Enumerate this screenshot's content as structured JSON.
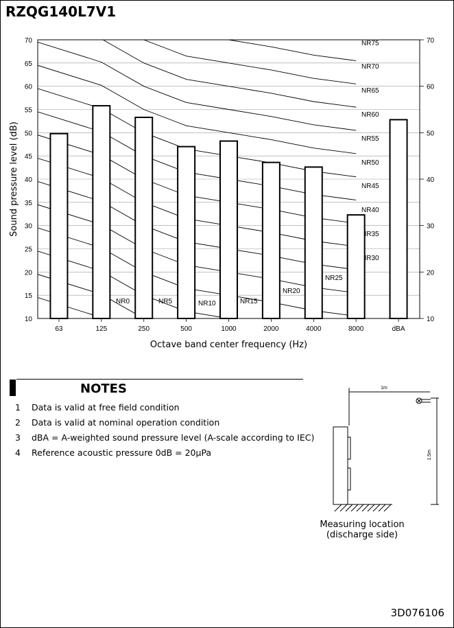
{
  "page_title": "RZQG140L7V1",
  "chart_data": {
    "type": "bar",
    "categories": [
      "63",
      "125",
      "250",
      "500",
      "1000",
      "2000",
      "4000",
      "8000",
      "dBA"
    ],
    "values": [
      49.8,
      55.8,
      53.3,
      47.0,
      48.2,
      43.6,
      42.6,
      32.3,
      52.8
    ],
    "xlabel": "Octave band center frequency (Hz)",
    "ylabel": "Sound pressure level (dB)",
    "ylim": [
      10,
      70
    ],
    "yticks_left": [
      10,
      15,
      20,
      25,
      30,
      35,
      40,
      45,
      50,
      55,
      60,
      65,
      70
    ],
    "yticks_right": [
      10,
      20,
      30,
      40,
      50,
      60,
      70
    ],
    "grid": "horizontal",
    "nr_curves": [
      {
        "label": "NR75",
        "values": [
          89.5,
          85.2,
          80.0,
          76.5,
          75.0,
          73.5,
          71.7,
          70.5
        ]
      },
      {
        "label": "NR70",
        "values": [
          84.5,
          80.2,
          75.0,
          71.5,
          70.0,
          68.5,
          66.7,
          65.5
        ]
      },
      {
        "label": "NR65",
        "values": [
          79.5,
          75.2,
          70.0,
          66.5,
          65.0,
          63.5,
          61.7,
          60.5
        ]
      },
      {
        "label": "NR60",
        "values": [
          74.5,
          70.2,
          65.0,
          61.5,
          60.0,
          58.5,
          56.7,
          55.5
        ]
      },
      {
        "label": "NR55",
        "values": [
          69.5,
          65.2,
          60.0,
          56.5,
          55.0,
          53.5,
          51.7,
          50.5
        ]
      },
      {
        "label": "NR50",
        "values": [
          64.5,
          60.2,
          55.0,
          51.5,
          50.0,
          48.5,
          46.7,
          45.5
        ]
      },
      {
        "label": "NR45",
        "values": [
          59.5,
          55.2,
          50.0,
          46.5,
          45.0,
          43.5,
          41.7,
          40.5
        ]
      },
      {
        "label": "NR40",
        "values": [
          54.5,
          50.2,
          45.0,
          41.5,
          40.0,
          38.5,
          36.7,
          35.5
        ]
      },
      {
        "label": "NR35",
        "values": [
          49.5,
          45.2,
          40.0,
          36.5,
          35.0,
          33.5,
          31.7,
          30.5
        ]
      },
      {
        "label": "NR30",
        "values": [
          44.5,
          40.2,
          35.0,
          31.5,
          30.0,
          28.5,
          26.7,
          25.5
        ]
      },
      {
        "label": "NR25",
        "values": [
          39.5,
          35.2,
          30.0,
          26.5,
          25.0,
          23.5,
          21.7,
          20.5
        ]
      },
      {
        "label": "NR20",
        "values": [
          34.5,
          30.2,
          25.0,
          21.5,
          20.0,
          18.5,
          16.7,
          15.5
        ]
      },
      {
        "label": "NR15",
        "values": [
          29.5,
          25.2,
          20.0,
          16.5,
          15.0,
          13.5,
          11.7,
          10.5
        ]
      },
      {
        "label": "NR10",
        "values": [
          24.5,
          20.2,
          15.0,
          11.5,
          10.0,
          8.5,
          6.7,
          5.5
        ]
      },
      {
        "label": "NR5",
        "values": [
          19.5,
          15.2,
          10.0,
          6.5,
          5.0,
          3.5,
          1.7,
          0.5
        ]
      },
      {
        "label": "NR0",
        "values": [
          14.5,
          10.2,
          5.0,
          1.5,
          0.0,
          -1.5,
          -3.3,
          -4.5
        ]
      }
    ]
  },
  "notes": {
    "title": "NOTES",
    "items": [
      {
        "num": "1",
        "text": "Data is valid at free field condition"
      },
      {
        "num": "2",
        "text": "Data is valid at nominal operation condition"
      },
      {
        "num": "3",
        "text": "dBA = A-weighted sound pressure level (A-scale according to IEC)"
      },
      {
        "num": "4",
        "text": "Reference acoustic pressure 0dB = 20μPa"
      }
    ]
  },
  "diagram": {
    "width_label": "1m",
    "height_label": "1.5m",
    "caption_line1": "Measuring location",
    "caption_line2": "(discharge side)"
  },
  "doc_number": "3D076106"
}
